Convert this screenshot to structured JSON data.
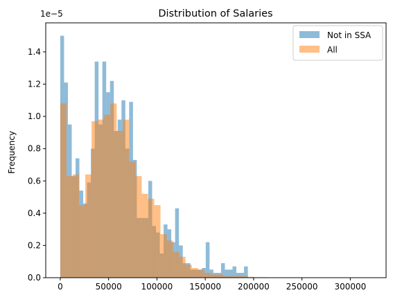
{
  "chart_data": {
    "type": "histogram",
    "title": "Distribution of Salaries",
    "xlabel": "",
    "ylabel": "Frequency",
    "y_offset_text": "1e−5",
    "x_ticks": [
      0,
      50000,
      100000,
      150000,
      200000,
      250000,
      300000
    ],
    "x_tick_labels": [
      "0",
      "50000",
      "100000",
      "150000",
      "200000",
      "250000",
      "300000"
    ],
    "y_ticks": [
      0.0,
      0.2,
      0.4,
      0.6,
      0.8,
      1.0,
      1.2,
      1.4
    ],
    "y_tick_labels": [
      "0.0",
      "0.2",
      "0.4",
      "0.6",
      "0.8",
      "1.0",
      "1.2",
      "1.4"
    ],
    "xlim": [
      -15000,
      337000
    ],
    "ylim": [
      0,
      1.58
    ],
    "y_scale_note": "values are in units of 1e-5",
    "legend_position": "top-right",
    "series": [
      {
        "name": "Not in SSA",
        "color": "#1f77b4",
        "opacity": 0.5,
        "bin_edges": [
          0,
          3960,
          7920,
          11880,
          15840,
          19800,
          23760,
          27720,
          31680,
          35640,
          39600,
          43560,
          47520,
          51480,
          55440,
          59400,
          63360,
          67320,
          71280,
          75240,
          79200,
          83160,
          87120,
          91080,
          95040,
          99000,
          102960,
          106920,
          110880,
          114840,
          118800,
          122760,
          126720,
          130680,
          134640,
          138600,
          142560,
          146520,
          150480,
          154440,
          158400,
          162360,
          166320,
          170280,
          174240,
          178200,
          182160,
          186120,
          190080,
          194040,
          198000
        ],
        "values": [
          1.5,
          1.21,
          0.95,
          0.63,
          0.74,
          0.54,
          0.46,
          0.59,
          0.8,
          1.34,
          0.95,
          1.34,
          1.15,
          1.22,
          0.91,
          0.98,
          1.1,
          0.8,
          1.09,
          0.73,
          0.37,
          0.37,
          0.37,
          0.6,
          0.32,
          0.28,
          0.15,
          0.33,
          0.3,
          0.22,
          0.43,
          0.2,
          0.09,
          0.09,
          0.05,
          0.05,
          0.05,
          0.06,
          0.22,
          0.05,
          0.03,
          0.03,
          0.09,
          0.05,
          0.05,
          0.07,
          0.03,
          0.03,
          0.07,
          0.0
        ]
      },
      {
        "name": "All",
        "color": "#ff7f0e",
        "opacity": 0.5,
        "bin_edges": [
          0,
          6480,
          12960,
          19440,
          25920,
          32400,
          38880,
          45360,
          51840,
          58320,
          64800,
          71280,
          77760,
          84240,
          90720,
          97200,
          103680,
          110160,
          116640,
          123120,
          129600,
          136080,
          142560,
          149040,
          155520,
          162000,
          168480,
          174960,
          181440,
          187920,
          194400,
          200880,
          207360,
          213840,
          220320,
          226800,
          233280,
          239760,
          246240,
          252720,
          259200,
          265680,
          272160,
          278640,
          285120,
          291600,
          298080,
          304560,
          311040,
          317520,
          324000
        ],
        "values": [
          1.08,
          0.63,
          0.64,
          0.45,
          0.64,
          0.97,
          0.98,
          1.01,
          1.08,
          0.91,
          0.98,
          0.72,
          0.63,
          0.52,
          0.49,
          0.45,
          0.27,
          0.23,
          0.16,
          0.13,
          0.08,
          0.06,
          0.05,
          0.03,
          0.02,
          0.02,
          0.01,
          0.01,
          0.01,
          0.01,
          0.005,
          0.003,
          0.003,
          0.002,
          0.001,
          0.001,
          0.001,
          0.001,
          0.001,
          0.001,
          0.001,
          0.001,
          0.001,
          0.001,
          0.001,
          0.001,
          0.001,
          0.001,
          0.001,
          0.001
        ]
      }
    ]
  }
}
